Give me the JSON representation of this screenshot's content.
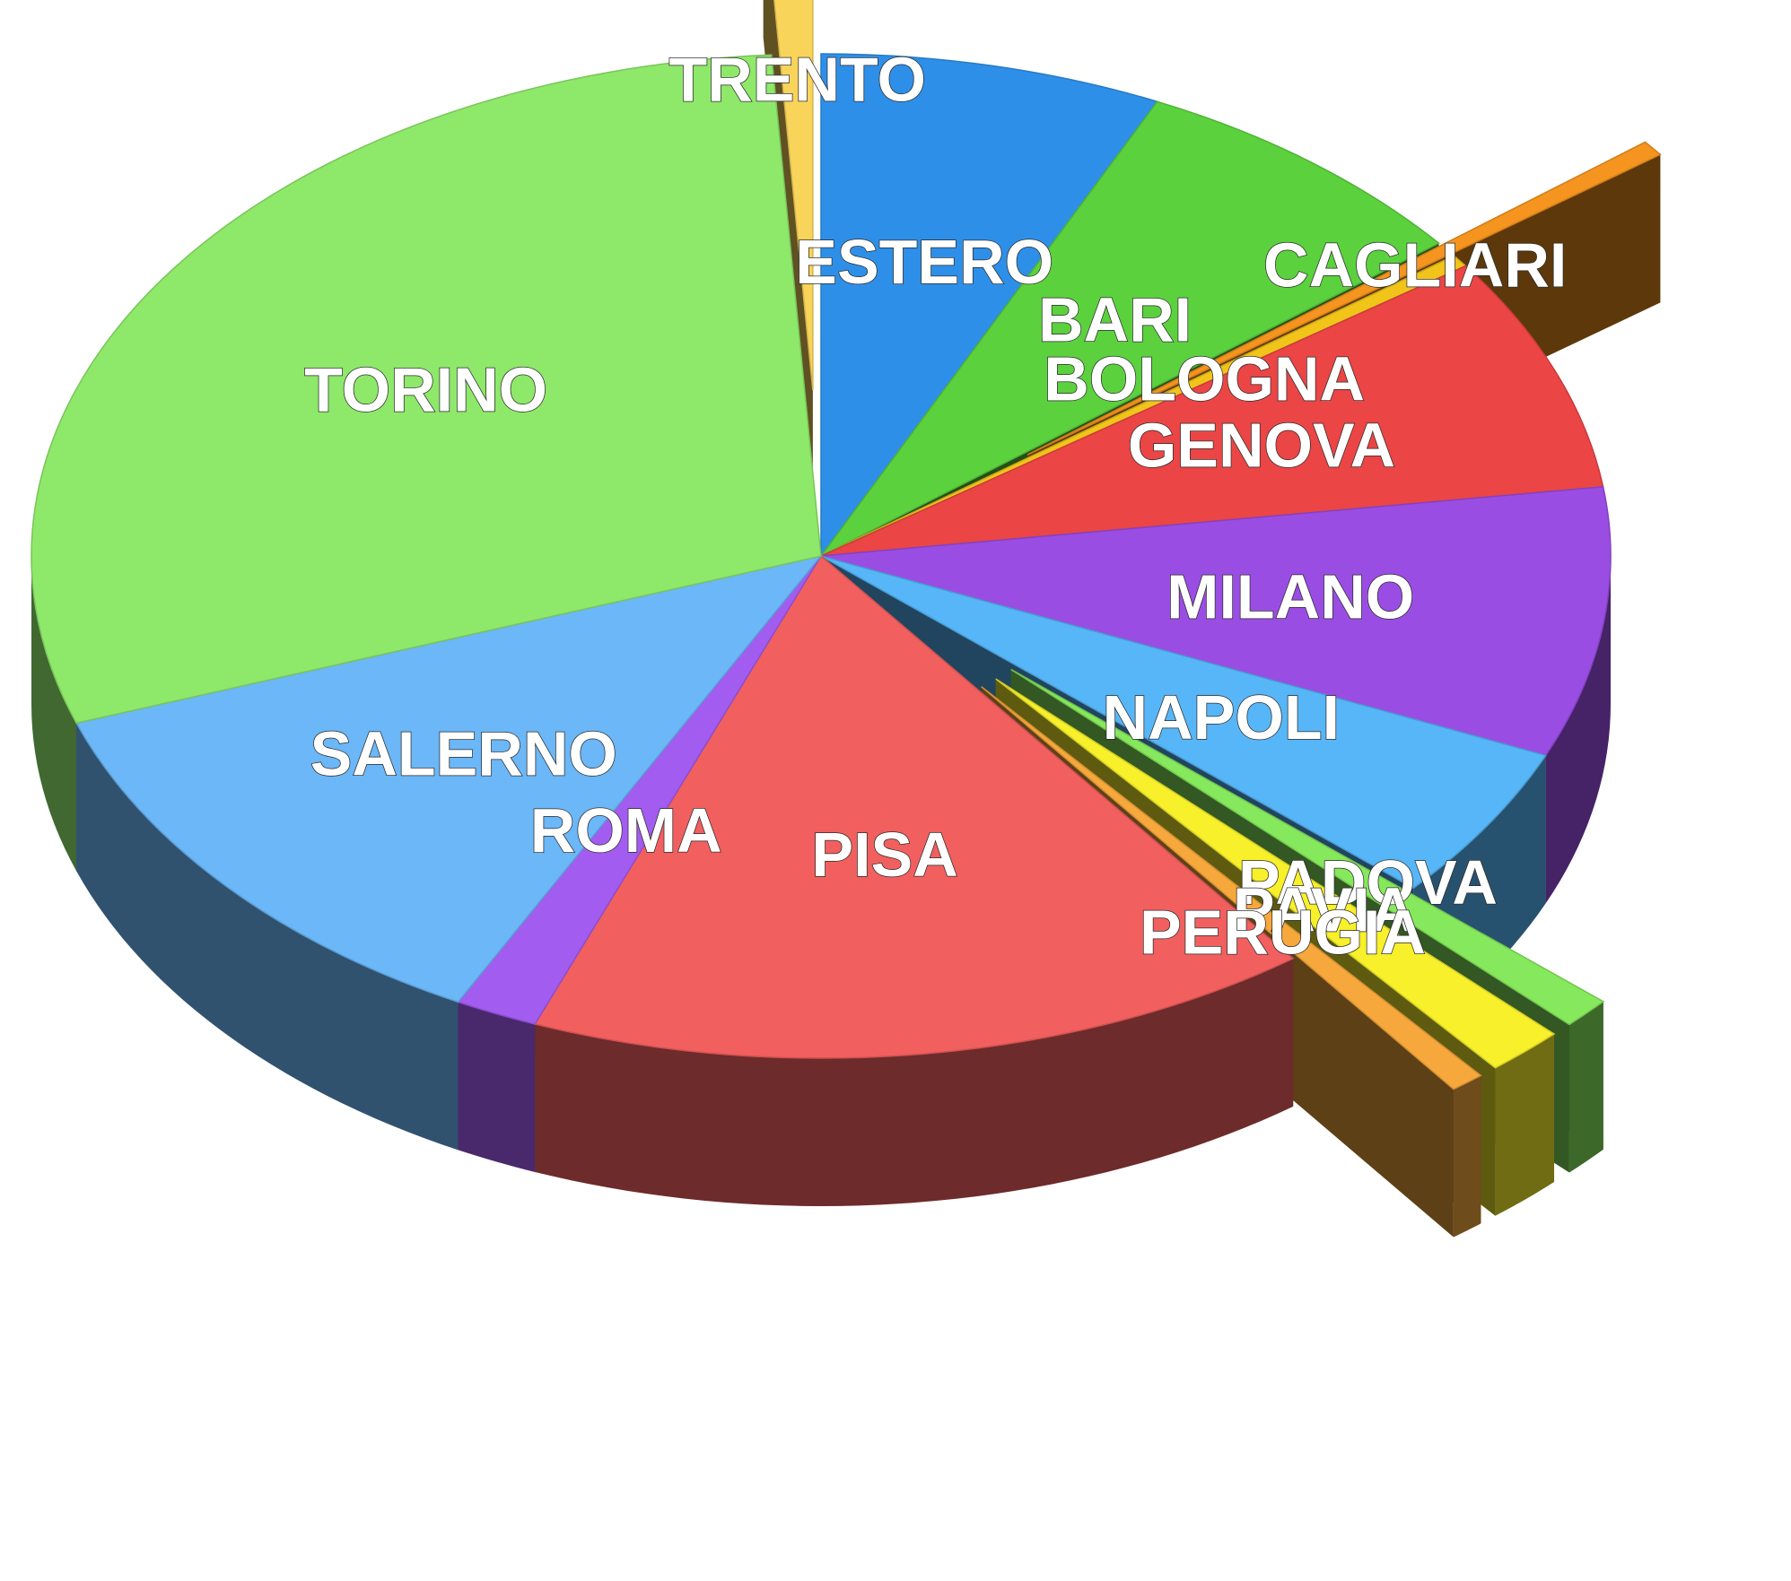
{
  "chart_data": {
    "type": "pie",
    "style": "3d-exploded",
    "start_angle_deg": -90,
    "direction": "clockwise",
    "slices": [
      {
        "name": "ESTERO",
        "value": 7.0,
        "color": "#2e8fe8",
        "exploded": false
      },
      {
        "name": "BARI",
        "value": 7.3,
        "color": "#5cd13e",
        "exploded": false
      },
      {
        "name": "CAGLIARI",
        "value": 0.5,
        "color": "#f5941e",
        "exploded": true
      },
      {
        "name": "BOLOGNA",
        "value": 0.4,
        "color": "#f0c419",
        "exploded": false
      },
      {
        "name": "GENOVA",
        "value": 7.6,
        "color": "#eb4545",
        "exploded": false
      },
      {
        "name": "MILANO",
        "value": 8.7,
        "color": "#9a4de3",
        "exploded": false
      },
      {
        "name": "NAPOLI",
        "value": 5.0,
        "color": "#57b6f7",
        "exploded": false
      },
      {
        "name": "PADOVA",
        "value": 1.0,
        "color": "#86e85c",
        "exploded": true
      },
      {
        "name": "PAVIA",
        "value": 1.6,
        "color": "#f7f02a",
        "exploded": true
      },
      {
        "name": "PERUGIA",
        "value": 0.7,
        "color": "#f7a83c",
        "exploded": true
      },
      {
        "name": "PISA",
        "value": 16.1,
        "color": "#f25f5f",
        "exploded": false
      },
      {
        "name": "ROMA",
        "value": 1.7,
        "color": "#a35cf0",
        "exploded": false
      },
      {
        "name": "SALERNO",
        "value": 12.0,
        "color": "#6bb7f7",
        "exploded": false
      },
      {
        "name": "TORINO",
        "value": 29.4,
        "color": "#8ee86a",
        "exploded": false
      },
      {
        "name": "TRENTO",
        "value": 1.0,
        "color": "#f9d45a",
        "exploded": true
      }
    ]
  }
}
